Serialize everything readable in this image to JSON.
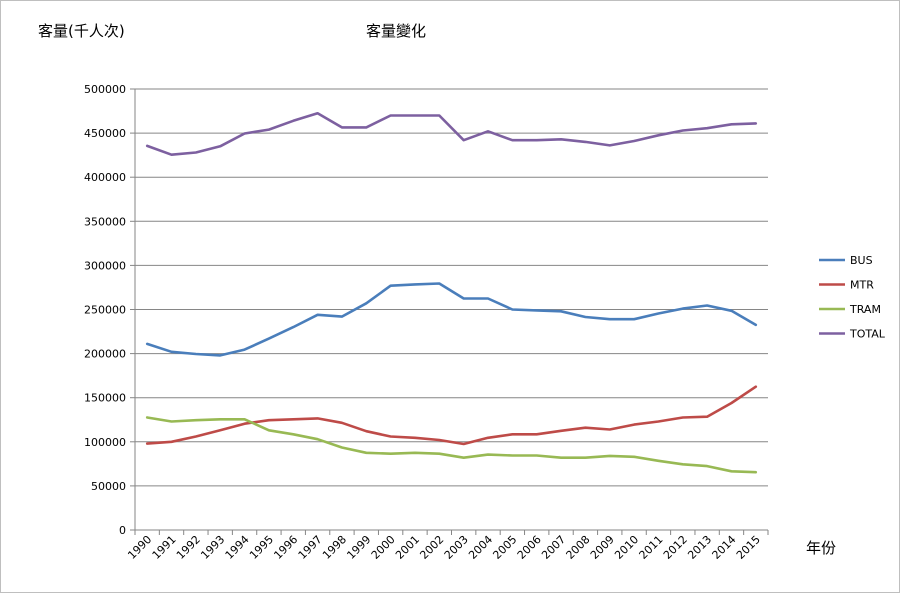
{
  "chart_data": {
    "type": "line",
    "title": "客量變化",
    "ylabel": "客量(千人次)",
    "xlabel": "年份",
    "ylim": [
      0,
      500000
    ],
    "yticks": [
      0,
      50000,
      100000,
      150000,
      200000,
      250000,
      300000,
      350000,
      400000,
      450000,
      500000
    ],
    "grid": true,
    "legend_position": "right",
    "categories": [
      "1990",
      "1991",
      "1992",
      "1993",
      "1994",
      "1995",
      "1996",
      "1997",
      "1998",
      "1999",
      "2000",
      "2001",
      "2002",
      "2003",
      "2004",
      "2005",
      "2006",
      "2007",
      "2008",
      "2009",
      "2010",
      "2011",
      "2012",
      "2013",
      "2014",
      "2015"
    ],
    "series": [
      {
        "name": "BUS",
        "color": "#4a7ebb",
        "values": [
          211000,
          202000,
          199500,
          198000,
          204500,
          217000,
          230000,
          244000,
          242000,
          257000,
          277000,
          278500,
          279500,
          262500,
          262500,
          250000,
          249000,
          248000,
          241500,
          239000,
          239000,
          245500,
          251000,
          254500,
          248500,
          232500
        ]
      },
      {
        "name": "MTR",
        "color": "#be4b48",
        "values": [
          98000,
          100000,
          106000,
          113000,
          120500,
          124500,
          125500,
          126500,
          121500,
          112000,
          106000,
          104500,
          102000,
          97500,
          104500,
          108500,
          108500,
          112500,
          116000,
          114000,
          119500,
          123000,
          127500,
          128500,
          144000,
          162500
        ]
      },
      {
        "name": "TRAM",
        "color": "#98b954",
        "values": [
          127500,
          123000,
          124500,
          125500,
          125500,
          113000,
          108500,
          103000,
          93500,
          87500,
          86500,
          87500,
          86500,
          82000,
          85500,
          84500,
          84500,
          82000,
          82000,
          84000,
          83000,
          78500,
          74500,
          72500,
          66500,
          65500
        ]
      },
      {
        "name": "TOTAL",
        "color": "#7d60a0",
        "values": [
          435500,
          425500,
          428000,
          435000,
          449500,
          454000,
          464000,
          472500,
          456500,
          456500,
          470000,
          470000,
          470000,
          442000,
          452000,
          442000,
          442000,
          443000,
          440000,
          436000,
          441000,
          447500,
          453000,
          455500,
          460000,
          461000
        ]
      }
    ]
  }
}
